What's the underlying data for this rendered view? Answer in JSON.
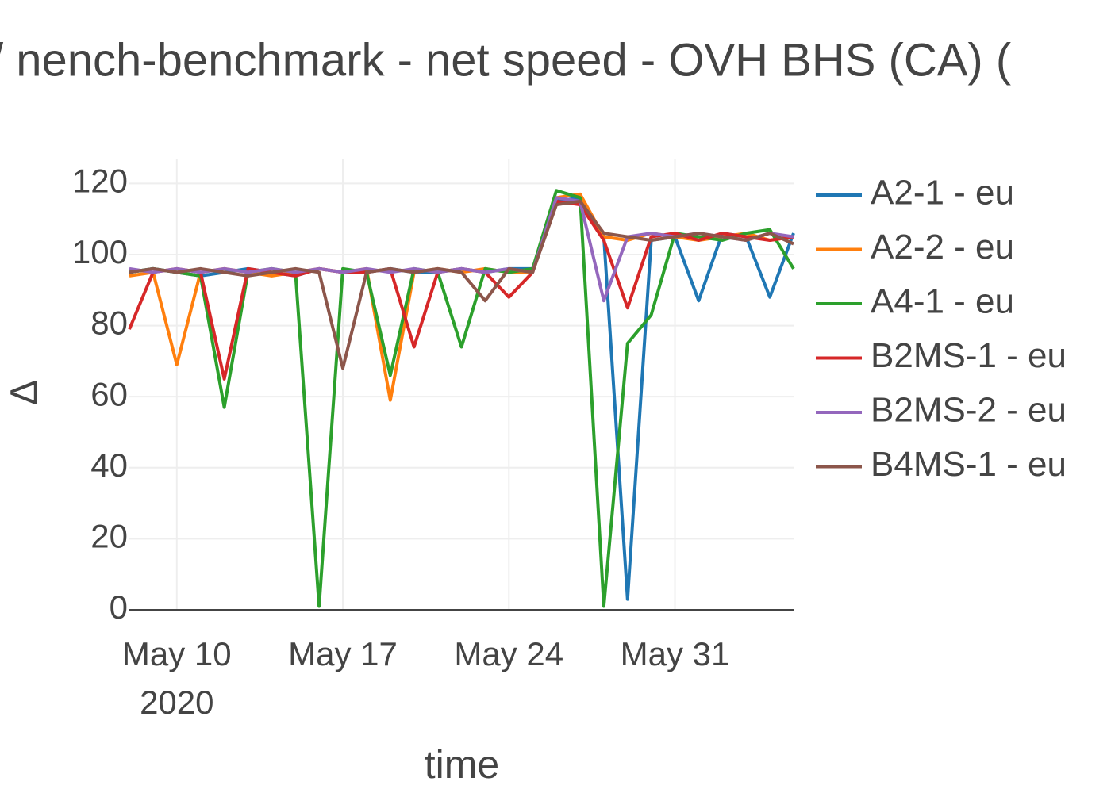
{
  "chart_data": {
    "type": "line",
    "title": "/ nench-benchmark - net speed - OVH BHS (CA) (",
    "x_label": "time",
    "y_label": "Δ",
    "x": [
      "2020-05-08",
      "2020-05-09",
      "2020-05-10",
      "2020-05-11",
      "2020-05-12",
      "2020-05-13",
      "2020-05-14",
      "2020-05-15",
      "2020-05-16",
      "2020-05-17",
      "2020-05-18",
      "2020-05-19",
      "2020-05-20",
      "2020-05-21",
      "2020-05-22",
      "2020-05-23",
      "2020-05-24",
      "2020-05-25",
      "2020-05-26",
      "2020-05-27",
      "2020-05-28",
      "2020-05-29",
      "2020-05-30",
      "2020-05-31",
      "2020-06-01",
      "2020-06-02",
      "2020-06-03",
      "2020-06-04",
      "2020-06-05"
    ],
    "series": [
      {
        "name": "A2-1 - eu",
        "color": "#1f77b4",
        "values": [
          95,
          96,
          95,
          94,
          95,
          96,
          95,
          94,
          96,
          95,
          95,
          96,
          95,
          95,
          96,
          95,
          96,
          96,
          115,
          116,
          105,
          3,
          104,
          105,
          87,
          106,
          105,
          88,
          106
        ]
      },
      {
        "name": "A2-2 - eu",
        "color": "#ff7f0e",
        "values": [
          94,
          95,
          69,
          95,
          96,
          95,
          94,
          95,
          96,
          95,
          96,
          59,
          95,
          96,
          95,
          96,
          95,
          95,
          116,
          117,
          105,
          104,
          106,
          105,
          104,
          105,
          106,
          104,
          105
        ]
      },
      {
        "name": "A4-1 - eu",
        "color": "#2ca02c",
        "values": [
          95,
          96,
          95,
          94,
          57,
          95,
          96,
          95,
          1,
          96,
          95,
          66,
          96,
          95,
          74,
          96,
          95,
          96,
          118,
          116,
          1,
          75,
          83,
          106,
          105,
          104,
          106,
          107,
          96
        ]
      },
      {
        "name": "B2MS-1 - eu",
        "color": "#d62728",
        "values": [
          79,
          95,
          96,
          95,
          65,
          96,
          95,
          94,
          96,
          95,
          95,
          96,
          74,
          95,
          96,
          95,
          88,
          95,
          115,
          114,
          104,
          85,
          105,
          106,
          104,
          106,
          105,
          104,
          105
        ]
      },
      {
        "name": "B2MS-2 - eu",
        "color": "#9467bd",
        "values": [
          96,
          95,
          96,
          95,
          96,
          95,
          96,
          95,
          96,
          95,
          96,
          95,
          96,
          95,
          96,
          95,
          96,
          95,
          116,
          115,
          87,
          105,
          106,
          105,
          106,
          105,
          104,
          106,
          105
        ]
      },
      {
        "name": "B4MS-1 - eu",
        "color": "#8c564b",
        "values": [
          95,
          96,
          95,
          96,
          95,
          94,
          95,
          96,
          95,
          68,
          95,
          96,
          95,
          96,
          95,
          87,
          96,
          95,
          114,
          115,
          106,
          105,
          104,
          105,
          106,
          105,
          104,
          106,
          103
        ]
      }
    ],
    "xlim": [
      "2020-05-08",
      "2020-06-05"
    ],
    "xticks": [
      {
        "value": "2020-05-10",
        "label": "May 10\n2020"
      },
      {
        "value": "2020-05-17",
        "label": "May 17"
      },
      {
        "value": "2020-05-24",
        "label": "May 24"
      },
      {
        "value": "2020-05-31",
        "label": "May 31"
      }
    ],
    "ylim": [
      0,
      127
    ],
    "yticks": [
      0,
      20,
      40,
      60,
      80,
      100,
      120
    ],
    "grid": true
  }
}
